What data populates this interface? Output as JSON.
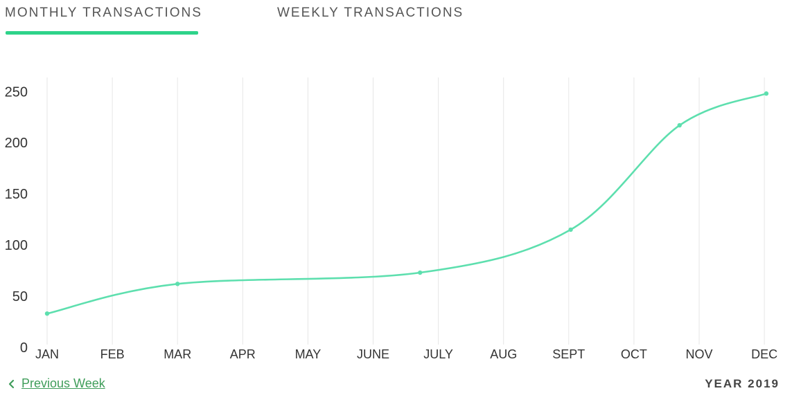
{
  "tabs": [
    {
      "label": "MONTHLY TRANSACTIONS",
      "active": true
    },
    {
      "label": "WEEKLY TRANSACTIONS",
      "active": false
    }
  ],
  "colors": {
    "accent": "#2ed38a",
    "line": "#5ddfae",
    "grid": "#e6e6e6",
    "link": "#3f9d5a",
    "axis_text": "#333333"
  },
  "footer": {
    "previous_label": "Previous Week",
    "previous_icon": "chevron-left-icon",
    "year_label": "YEAR 2019"
  },
  "chart_data": {
    "type": "line",
    "categories": [
      "JAN",
      "FEB",
      "MAR",
      "APR",
      "MAY",
      "JUNE",
      "JULY",
      "AUG",
      "SEPT",
      "OCT",
      "NOV",
      "DEC"
    ],
    "points": [
      {
        "x": 0.0,
        "y": 33
      },
      {
        "x": 2.0,
        "y": 62
      },
      {
        "x": 5.72,
        "y": 73
      },
      {
        "x": 8.03,
        "y": 115
      },
      {
        "x": 9.7,
        "y": 217
      },
      {
        "x": 11.03,
        "y": 248
      }
    ],
    "y_ticks": [
      0,
      50,
      100,
      150,
      200,
      250
    ],
    "ylim": [
      0,
      250
    ],
    "xlabel": "",
    "ylabel": "",
    "grid": "vertical",
    "legend": false
  }
}
